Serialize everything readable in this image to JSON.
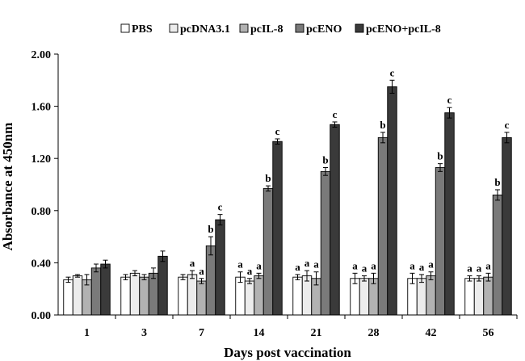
{
  "chart_data": {
    "type": "bar",
    "title": "",
    "xlabel": "Days post vaccination",
    "ylabel": "Absorbance at 450nm",
    "ylim": [
      0,
      2.0
    ],
    "yticks": [
      0.0,
      0.4,
      0.8,
      1.2,
      1.6,
      2.0
    ],
    "ytick_labels": [
      "0.00",
      "0.40",
      "0.80",
      "1.20",
      "1.60",
      "2.00"
    ],
    "categories": [
      "1",
      "3",
      "7",
      "14",
      "21",
      "28",
      "42",
      "56"
    ],
    "legend_position": "top",
    "series": [
      {
        "name": "PBS",
        "color": "#ffffff",
        "values": [
          0.27,
          0.29,
          0.29,
          0.29,
          0.29,
          0.28,
          0.28,
          0.28
        ],
        "errors": [
          0.02,
          0.02,
          0.02,
          0.04,
          0.02,
          0.04,
          0.04,
          0.02
        ],
        "labels": [
          "",
          "",
          "",
          "a",
          "a",
          "a",
          "a",
          "a"
        ]
      },
      {
        "name": "pcDNA3.1",
        "color": "#ececec",
        "values": [
          0.3,
          0.32,
          0.31,
          0.26,
          0.3,
          0.28,
          0.28,
          0.28
        ],
        "errors": [
          0.01,
          0.02,
          0.03,
          0.02,
          0.04,
          0.02,
          0.03,
          0.02
        ],
        "labels": [
          "",
          "",
          "a",
          "a",
          "a",
          "a",
          "a",
          "a"
        ]
      },
      {
        "name": "pcIL-8",
        "color": "#b2b2b2",
        "values": [
          0.27,
          0.29,
          0.26,
          0.3,
          0.28,
          0.28,
          0.3,
          0.29
        ],
        "errors": [
          0.04,
          0.02,
          0.02,
          0.02,
          0.05,
          0.04,
          0.03,
          0.03
        ],
        "labels": [
          "",
          "",
          "a",
          "a",
          "a",
          "a",
          "a",
          "a"
        ]
      },
      {
        "name": "pcENO",
        "color": "#7a7a7a",
        "values": [
          0.36,
          0.32,
          0.53,
          0.97,
          1.1,
          1.36,
          1.13,
          0.92
        ],
        "errors": [
          0.03,
          0.04,
          0.07,
          0.02,
          0.03,
          0.04,
          0.03,
          0.04
        ],
        "labels": [
          "",
          "",
          "b",
          "b",
          "b",
          "b",
          "b",
          "b"
        ]
      },
      {
        "name": "pcENO+pcIL-8",
        "color": "#3a3a3a",
        "values": [
          0.39,
          0.45,
          0.73,
          1.33,
          1.46,
          1.75,
          1.55,
          1.36
        ],
        "errors": [
          0.03,
          0.04,
          0.04,
          0.02,
          0.02,
          0.05,
          0.04,
          0.04
        ],
        "labels": [
          "",
          "",
          "c",
          "c",
          "c",
          "c",
          "c",
          "c"
        ]
      }
    ]
  }
}
